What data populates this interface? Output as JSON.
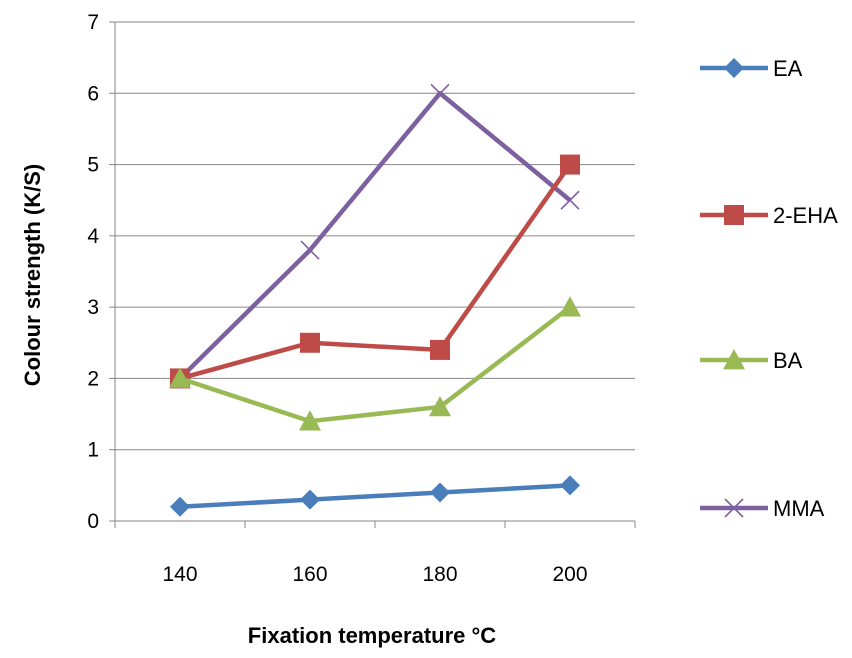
{
  "chart_data": {
    "type": "line",
    "title": "",
    "xlabel": "Fixation temperature °C",
    "ylabel": "Colour strength (K/S)",
    "categories": [
      "140",
      "160",
      "180",
      "200"
    ],
    "ylim": [
      0,
      7
    ],
    "yticks": [
      "0",
      "1",
      "2",
      "3",
      "4",
      "5",
      "6",
      "7"
    ],
    "grid": true,
    "legend_position": "right",
    "series": [
      {
        "name": "EA",
        "values": [
          0.2,
          0.3,
          0.4,
          0.5
        ],
        "color": "#4A7EBB",
        "marker": "diamond"
      },
      {
        "name": "2-EHA",
        "values": [
          2.0,
          2.5,
          2.4,
          5.0
        ],
        "color": "#BE4B48",
        "marker": "square"
      },
      {
        "name": "BA",
        "values": [
          2.0,
          1.4,
          1.6,
          3.0
        ],
        "color": "#98B954",
        "marker": "triangle"
      },
      {
        "name": "MMA",
        "values": [
          2.0,
          3.8,
          6.0,
          4.5
        ],
        "color": "#7D60A0",
        "marker": "x"
      }
    ]
  }
}
